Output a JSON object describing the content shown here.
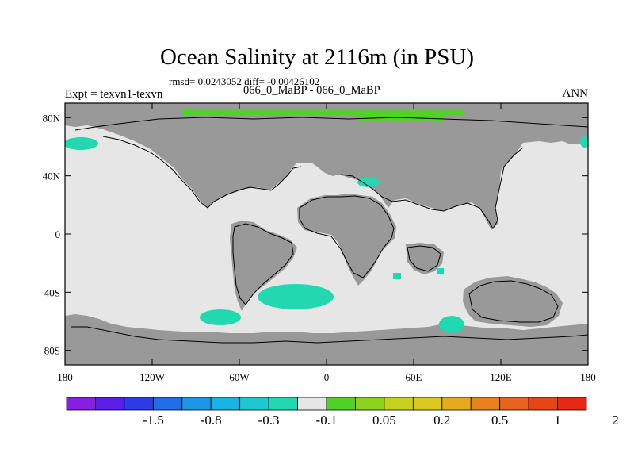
{
  "header": {
    "title": "Ocean Salinity at 2116m (in PSU)",
    "stats": "rmsd= 0.0243052 diff= -0.00426102",
    "experiment": "Expt = texvn1-texvn",
    "cases": "066_0_MaBP - 066_0_MaBP",
    "season": "ANN"
  },
  "axes": {
    "x_ticks": [
      "180",
      "120W",
      "60W",
      "0",
      "60E",
      "120E",
      "180"
    ],
    "y_ticks": [
      "80N",
      "40N",
      "0",
      "40S",
      "80S"
    ]
  },
  "colorbar": {
    "labels": [
      "-1.5",
      "-0.8",
      "-0.3",
      "-0.1",
      "0.05",
      "0.2",
      "0.5",
      "1",
      "2"
    ],
    "colors": [
      "#8a1ee0",
      "#5a1ee6",
      "#2f3ce6",
      "#1e6ee6",
      "#1e96e6",
      "#19b4e6",
      "#1ec8d2",
      "#22d8b0",
      "#e6e6e6",
      "#50d228",
      "#8cd21e",
      "#c8d21e",
      "#dcc81e",
      "#e6aa1e",
      "#e6821e",
      "#e6641e",
      "#e64614",
      "#e62814"
    ]
  },
  "map": {
    "land_color": "#999999",
    "ocean_color": "#e6e6e6",
    "anomaly_colors": {
      "neg_small": "#22d8b0",
      "neg_mid": "#1ec8d2",
      "pos_small": "#50d228"
    },
    "lon_range": [
      -180,
      180
    ],
    "lat_range": [
      -90,
      90
    ]
  }
}
